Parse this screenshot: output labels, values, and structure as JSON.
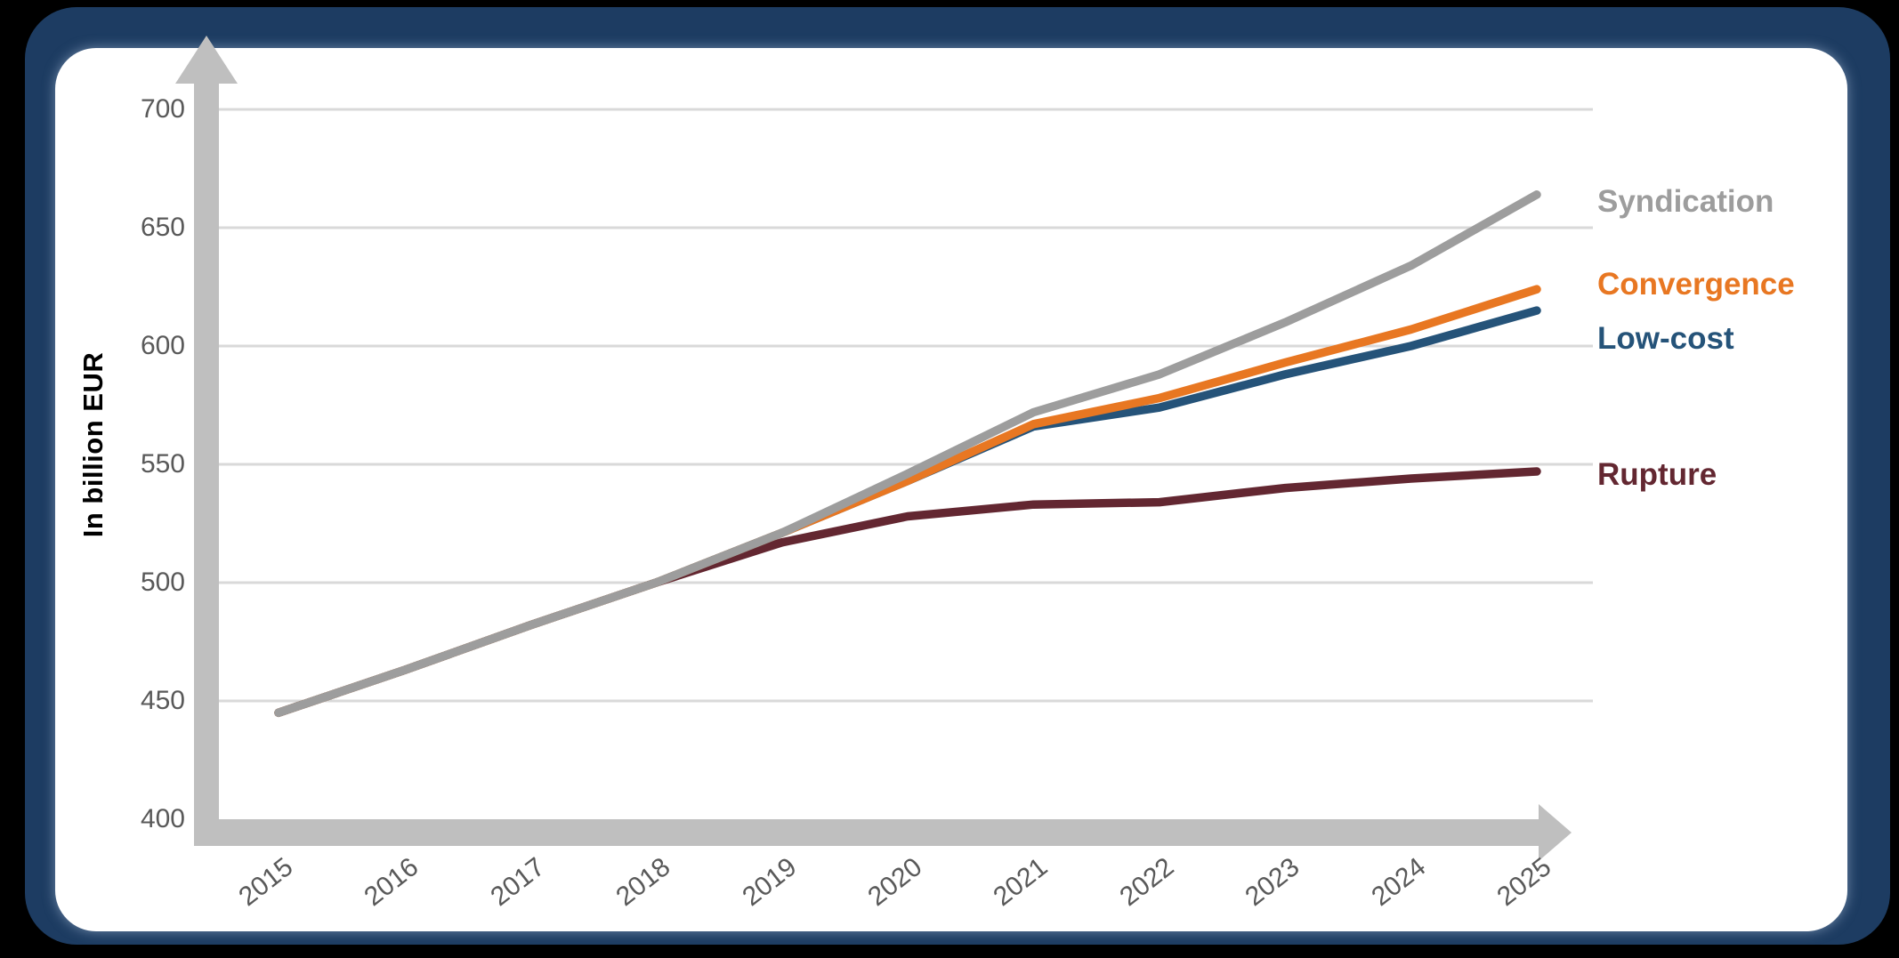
{
  "colors": {
    "background": "#000000",
    "frame": "#1d3c62",
    "card": "#ffffff",
    "axis_bar": "#bfbfbf",
    "gridline": "#d9d9d9",
    "tick_text": "#595959",
    "axis_title_text": "#000000"
  },
  "chart_data": {
    "type": "line",
    "title": "",
    "xlabel": "",
    "ylabel": "In billion EUR",
    "x": [
      2015,
      2016,
      2017,
      2018,
      2019,
      2020,
      2021,
      2022,
      2023,
      2024,
      2025
    ],
    "xlim": [
      2015,
      2025
    ],
    "ylim": [
      400,
      700
    ],
    "y_ticks": [
      400,
      450,
      500,
      550,
      600,
      650,
      700
    ],
    "grid": true,
    "legend_position": "right",
    "series": [
      {
        "name": "Syndication",
        "color": "#9d9d9d",
        "values": [
          445,
          463,
          482,
          500,
          521,
          546,
          572,
          588,
          610,
          634,
          664
        ]
      },
      {
        "name": "Convergence",
        "color": "#e87722",
        "values": [
          445,
          463,
          482,
          500,
          521,
          543,
          567,
          578,
          593,
          607,
          624
        ]
      },
      {
        "name": "Low-cost",
        "color": "#255379",
        "values": [
          445,
          463,
          482,
          500,
          521,
          543,
          566,
          574,
          588,
          600,
          615
        ]
      },
      {
        "name": "Rupture",
        "color": "#632731",
        "values": [
          445,
          463,
          482,
          500,
          517,
          528,
          533,
          534,
          540,
          544,
          547
        ]
      }
    ]
  }
}
